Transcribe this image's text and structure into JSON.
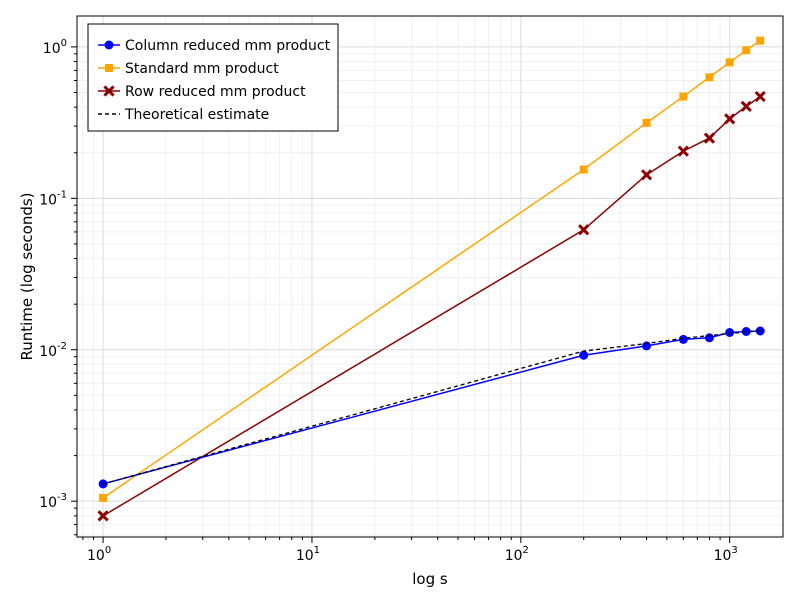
{
  "chart_data": {
    "type": "line",
    "title": "",
    "xlabel": "log s",
    "ylabel": "Runtime (log seconds)",
    "xscale": "log10",
    "yscale": "log10",
    "xlim": [
      0.75,
      1800
    ],
    "ylim": [
      0.00058,
      1.6
    ],
    "grid": true,
    "legend_position": "top-left",
    "x_ticks": [
      {
        "value": 1,
        "base": "10",
        "exp": "0"
      },
      {
        "value": 10,
        "base": "10",
        "exp": "1"
      },
      {
        "value": 100,
        "base": "10",
        "exp": "2"
      },
      {
        "value": 1000,
        "base": "10",
        "exp": "3"
      }
    ],
    "y_ticks": [
      {
        "value": 0.001,
        "base": "10",
        "exp": "-3"
      },
      {
        "value": 0.01,
        "base": "10",
        "exp": "-2"
      },
      {
        "value": 0.1,
        "base": "10",
        "exp": "-1"
      },
      {
        "value": 1,
        "base": "10",
        "exp": "0"
      }
    ],
    "series": [
      {
        "name": "Column reduced mm product",
        "color": "#0000ff",
        "marker": "circle",
        "line": "solid",
        "x": [
          1,
          200,
          400,
          600,
          800,
          1000,
          1200,
          1400
        ],
        "y": [
          0.0013,
          0.0092,
          0.0106,
          0.0117,
          0.012,
          0.013,
          0.0132,
          0.0133
        ]
      },
      {
        "name": "Standard mm product",
        "color": "#ffa500",
        "marker": "square",
        "line": "solid",
        "x": [
          1,
          200,
          400,
          600,
          800,
          1000,
          1200,
          1400
        ],
        "y": [
          0.00105,
          0.155,
          0.315,
          0.47,
          0.63,
          0.79,
          0.95,
          1.1
        ]
      },
      {
        "name": "Row reduced mm product",
        "color": "#8b0000",
        "marker": "x",
        "line": "solid",
        "x": [
          1,
          200,
          400,
          600,
          800,
          1000,
          1200,
          1400
        ],
        "y": [
          0.0008,
          0.062,
          0.143,
          0.205,
          0.25,
          0.335,
          0.405,
          0.47
        ]
      },
      {
        "name": "Theoretical estimate",
        "color": "#000000",
        "marker": "none",
        "line": "dashed",
        "x": [
          1,
          200,
          400,
          600,
          800,
          1000,
          1200,
          1400
        ],
        "y": [
          0.0013,
          0.0098,
          0.011,
          0.0119,
          0.0124,
          0.0128,
          0.0131,
          0.0134
        ]
      }
    ]
  }
}
